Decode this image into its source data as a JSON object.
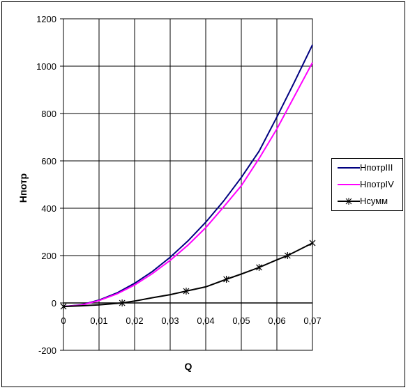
{
  "chart_data": {
    "type": "line",
    "title": "",
    "xlabel": "Q",
    "ylabel": "Hпотр",
    "xlim": [
      0,
      0.07
    ],
    "ylim": [
      -200,
      1200
    ],
    "x_ticks": [
      "0",
      "0,01",
      "0,02",
      "0,03",
      "0,04",
      "0,05",
      "0,06",
      "0,07"
    ],
    "y_ticks": [
      "1200",
      "1000",
      "800",
      "600",
      "400",
      "200",
      "0",
      "-200"
    ],
    "grid": "vertical and horizontal major gridlines",
    "legend_position": "right",
    "series": [
      {
        "name": "HпотрIII",
        "color": "#000080",
        "marker": "none",
        "x": [
          0,
          0.005,
          0.01,
          0.015,
          0.02,
          0.025,
          0.03,
          0.035,
          0.04,
          0.045,
          0.05,
          0.055,
          0.06,
          0.065,
          0.07
        ],
        "y": [
          -15,
          -8,
          12,
          42,
          83,
          133,
          193,
          262,
          341,
          430,
          530,
          641,
          785,
          935,
          1090
        ]
      },
      {
        "name": "HпотрIV",
        "color": "#ff00ff",
        "marker": "none",
        "x": [
          0,
          0.005,
          0.01,
          0.015,
          0.02,
          0.025,
          0.03,
          0.035,
          0.04,
          0.045,
          0.05,
          0.055,
          0.06,
          0.065,
          0.07
        ],
        "y": [
          -15,
          -9,
          10,
          38,
          76,
          124,
          180,
          244,
          318,
          405,
          495,
          610,
          735,
          875,
          1015
        ]
      },
      {
        "name": "Hсумм",
        "color": "#000000",
        "marker": "asterisk",
        "x": [
          0,
          0.005,
          0.01,
          0.0165,
          0.02,
          0.025,
          0.03,
          0.0345,
          0.04,
          0.0458,
          0.05,
          0.055,
          0.06,
          0.063,
          0.07
        ],
        "y": [
          -15,
          -12,
          -8,
          0,
          8,
          22,
          35,
          50,
          68,
          100,
          122,
          150,
          182,
          200,
          253
        ]
      }
    ],
    "marked_points": [
      {
        "series": "Hсумм",
        "x": [
          0,
          0.0165,
          0.0345,
          0.0458,
          0.055,
          0.063,
          0.07
        ],
        "y": [
          -15,
          0,
          50,
          100,
          150,
          200,
          253
        ]
      }
    ]
  },
  "legend": {
    "items": [
      {
        "label": "HпотрIII",
        "color": "#000080"
      },
      {
        "label": "HпотрIV",
        "color": "#ff00ff"
      },
      {
        "label": "Hсумм",
        "color": "#000000"
      }
    ]
  }
}
